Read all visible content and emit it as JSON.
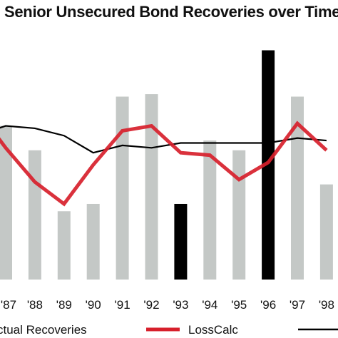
{
  "chart_data": {
    "type": "bar",
    "title": "Senior Unsecured Bond Recoveries over Time",
    "categories": [
      "'87",
      "'88",
      "'89",
      "'90",
      "'91",
      "'92",
      "'93",
      "'94",
      "'95",
      "'96",
      "'97",
      "'98"
    ],
    "ylim": [
      0,
      100
    ],
    "grid": false,
    "series": [
      {
        "name": "Actual Recoveries",
        "kind": "bar",
        "color": "#c4c8c6",
        "highlight_color": "#000000",
        "highlight_indices": [
          6,
          9
        ],
        "values": [
          63,
          53,
          28,
          31,
          75,
          76,
          31,
          57,
          53,
          94,
          75,
          39
        ]
      },
      {
        "name": "LossCalc",
        "kind": "line",
        "color": "#d71f2b",
        "values": [
          54,
          40,
          31,
          47,
          61,
          63,
          52,
          51,
          41,
          48,
          64,
          53
        ]
      },
      {
        "name": "",
        "kind": "line",
        "color": "#000000",
        "values": [
          63,
          62,
          59,
          52,
          55,
          54,
          56,
          56,
          56,
          56,
          58,
          57
        ]
      }
    ],
    "legend": {
      "placement": "bottom",
      "entries": [
        "ctual Recoveries",
        "LossCalc",
        ""
      ]
    }
  }
}
